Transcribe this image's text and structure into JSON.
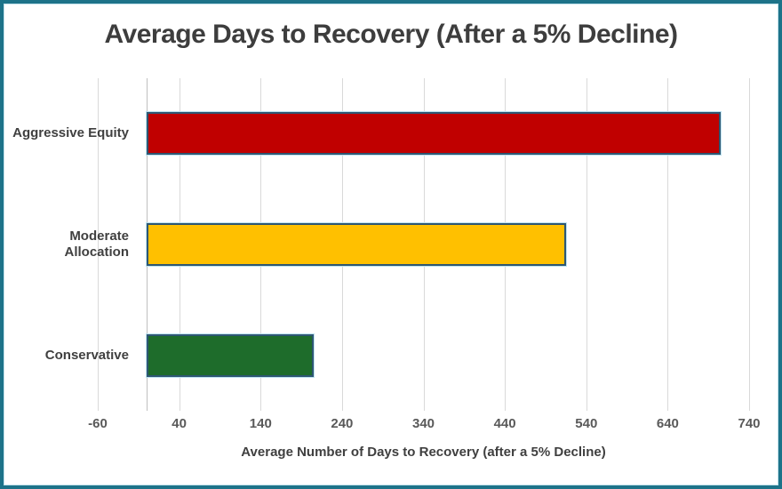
{
  "chart_data": {
    "type": "bar",
    "orientation": "horizontal",
    "title": "Average Days to Recovery (After a 5% Decline)",
    "xlabel": "Average Number of Days to Recovery (after a 5% Decline)",
    "categories": [
      "Aggressive Equity",
      "Moderate Allocation",
      "Conservative"
    ],
    "values": [
      705,
      515,
      205
    ],
    "bar_colors": [
      "#C00000",
      "#FFC000",
      "#1E6C2B"
    ],
    "bar_border_color": "#2E5773",
    "xticks": [
      -60,
      40,
      140,
      240,
      340,
      440,
      540,
      640,
      740
    ],
    "xlim": [
      -60,
      740
    ],
    "bar_start_value": 0,
    "grid": true,
    "gridline_color": "#D9D9D9",
    "zero_axis_line_color": "#BFBFBF",
    "frame_border_color": "#1D7389",
    "title_color": "#3D3D3D",
    "label_color": "#404040",
    "tick_label_color": "#595959",
    "legend": "none"
  }
}
